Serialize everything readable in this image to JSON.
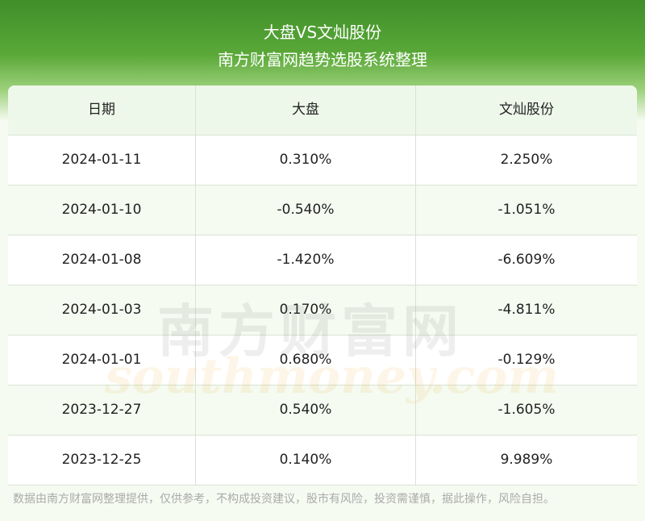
{
  "header": {
    "title": "大盘VS文灿股份",
    "subtitle": "南方财富网趋势选股系统整理"
  },
  "table": {
    "columns": [
      "日期",
      "大盘",
      "文灿股份"
    ],
    "rows": [
      [
        "2024-01-11",
        "0.310%",
        "2.250%"
      ],
      [
        "2024-01-10",
        "-0.540%",
        "-1.051%"
      ],
      [
        "2024-01-08",
        "-1.420%",
        "-6.609%"
      ],
      [
        "2024-01-03",
        "0.170%",
        "-4.811%"
      ],
      [
        "2024-01-01",
        "0.680%",
        "-0.129%"
      ],
      [
        "2023-12-27",
        "0.540%",
        "-1.605%"
      ],
      [
        "2023-12-25",
        "0.140%",
        "9.989%"
      ]
    ]
  },
  "watermark": {
    "brand": "南方财富网",
    "site": "southmoney.com"
  },
  "footer": "数据由南方财富网整理提供，仅供参考，不构成投资建议，股市有风险，投资需谨慎，据此操作，风险自担。"
}
